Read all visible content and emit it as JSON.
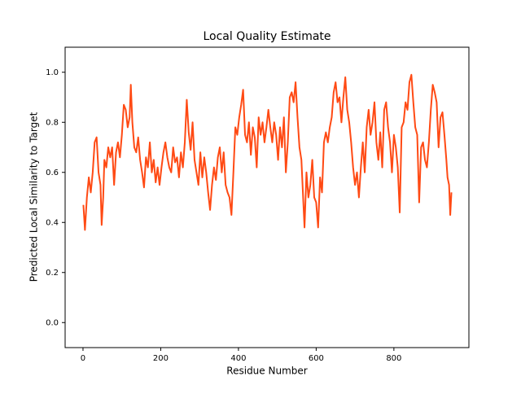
{
  "chart_data": {
    "type": "line",
    "title": "Local Quality Estimate",
    "x_label": "Residue Number",
    "y_label": "Predicted Local Similarity to Target",
    "xlim": [
      -46,
      993
    ],
    "ylim": [
      -0.1,
      1.1
    ],
    "xticks": [
      0,
      200,
      400,
      600,
      800
    ],
    "yticks": [
      {
        "value": 0,
        "label": "0.0"
      },
      0.2,
      0.4,
      0.6,
      0.8,
      {
        "value": 1,
        "label": "1.0"
      }
    ],
    "series": [
      {
        "color": "#ff4a14",
        "x": [
          1,
          5,
          10,
          15,
          20,
          25,
          30,
          35,
          40,
          45,
          48,
          52,
          55,
          60,
          65,
          70,
          75,
          80,
          85,
          90,
          95,
          100,
          105,
          110,
          115,
          120,
          123,
          127,
          132,
          137,
          142,
          147,
          152,
          157,
          162,
          167,
          172,
          177,
          182,
          187,
          192,
          197,
          202,
          207,
          212,
          217,
          222,
          227,
          232,
          237,
          242,
          247,
          252,
          257,
          262,
          267,
          272,
          277,
          282,
          287,
          292,
          297,
          302,
          307,
          312,
          317,
          322,
          327,
          332,
          337,
          342,
          347,
          352,
          357,
          362,
          367,
          372,
          377,
          382,
          387,
          392,
          397,
          402,
          407,
          412,
          417,
          422,
          427,
          432,
          437,
          442,
          447,
          452,
          457,
          462,
          467,
          472,
          477,
          482,
          487,
          492,
          497,
          502,
          507,
          512,
          517,
          522,
          527,
          532,
          537,
          542,
          547,
          552,
          557,
          562,
          567,
          570,
          575,
          580,
          585,
          590,
          595,
          600,
          605,
          610,
          615,
          620,
          625,
          630,
          635,
          640,
          645,
          650,
          655,
          660,
          665,
          670,
          675,
          680,
          685,
          690,
          695,
          700,
          705,
          710,
          715,
          720,
          725,
          730,
          735,
          740,
          745,
          750,
          755,
          760,
          765,
          770,
          775,
          780,
          785,
          790,
          795,
          800,
          805,
          810,
          815,
          820,
          825,
          830,
          835,
          840,
          845,
          850,
          855,
          860,
          865,
          870,
          875,
          880,
          885,
          890,
          895,
          900,
          905,
          910,
          915,
          920,
          925,
          930,
          935,
          938,
          942,
          945,
          948
        ],
        "values": [
          0.47,
          0.37,
          0.5,
          0.58,
          0.52,
          0.6,
          0.72,
          0.74,
          0.6,
          0.55,
          0.39,
          0.5,
          0.65,
          0.62,
          0.7,
          0.66,
          0.7,
          0.55,
          0.68,
          0.72,
          0.66,
          0.75,
          0.87,
          0.85,
          0.78,
          0.82,
          0.95,
          0.8,
          0.7,
          0.68,
          0.74,
          0.65,
          0.6,
          0.54,
          0.66,
          0.62,
          0.72,
          0.6,
          0.65,
          0.56,
          0.62,
          0.55,
          0.62,
          0.68,
          0.72,
          0.66,
          0.62,
          0.6,
          0.7,
          0.64,
          0.66,
          0.58,
          0.68,
          0.62,
          0.72,
          0.89,
          0.76,
          0.69,
          0.8,
          0.65,
          0.6,
          0.55,
          0.68,
          0.58,
          0.66,
          0.6,
          0.52,
          0.45,
          0.55,
          0.62,
          0.57,
          0.66,
          0.7,
          0.6,
          0.68,
          0.55,
          0.52,
          0.5,
          0.43,
          0.6,
          0.78,
          0.75,
          0.82,
          0.87,
          0.93,
          0.75,
          0.72,
          0.8,
          0.67,
          0.78,
          0.74,
          0.62,
          0.82,
          0.75,
          0.8,
          0.72,
          0.78,
          0.85,
          0.78,
          0.72,
          0.8,
          0.75,
          0.65,
          0.78,
          0.7,
          0.82,
          0.6,
          0.72,
          0.9,
          0.92,
          0.88,
          0.96,
          0.82,
          0.7,
          0.65,
          0.48,
          0.38,
          0.6,
          0.5,
          0.55,
          0.65,
          0.5,
          0.48,
          0.38,
          0.58,
          0.52,
          0.72,
          0.76,
          0.72,
          0.78,
          0.82,
          0.92,
          0.96,
          0.88,
          0.9,
          0.8,
          0.9,
          0.98,
          0.85,
          0.8,
          0.72,
          0.62,
          0.55,
          0.6,
          0.5,
          0.62,
          0.72,
          0.6,
          0.78,
          0.85,
          0.75,
          0.8,
          0.88,
          0.72,
          0.65,
          0.76,
          0.62,
          0.85,
          0.88,
          0.78,
          0.72,
          0.6,
          0.75,
          0.7,
          0.62,
          0.44,
          0.78,
          0.8,
          0.88,
          0.85,
          0.96,
          0.99,
          0.88,
          0.78,
          0.75,
          0.48,
          0.7,
          0.72,
          0.65,
          0.62,
          0.72,
          0.85,
          0.95,
          0.92,
          0.88,
          0.7,
          0.82,
          0.84,
          0.75,
          0.65,
          0.58,
          0.55,
          0.43,
          0.52
        ]
      }
    ]
  }
}
